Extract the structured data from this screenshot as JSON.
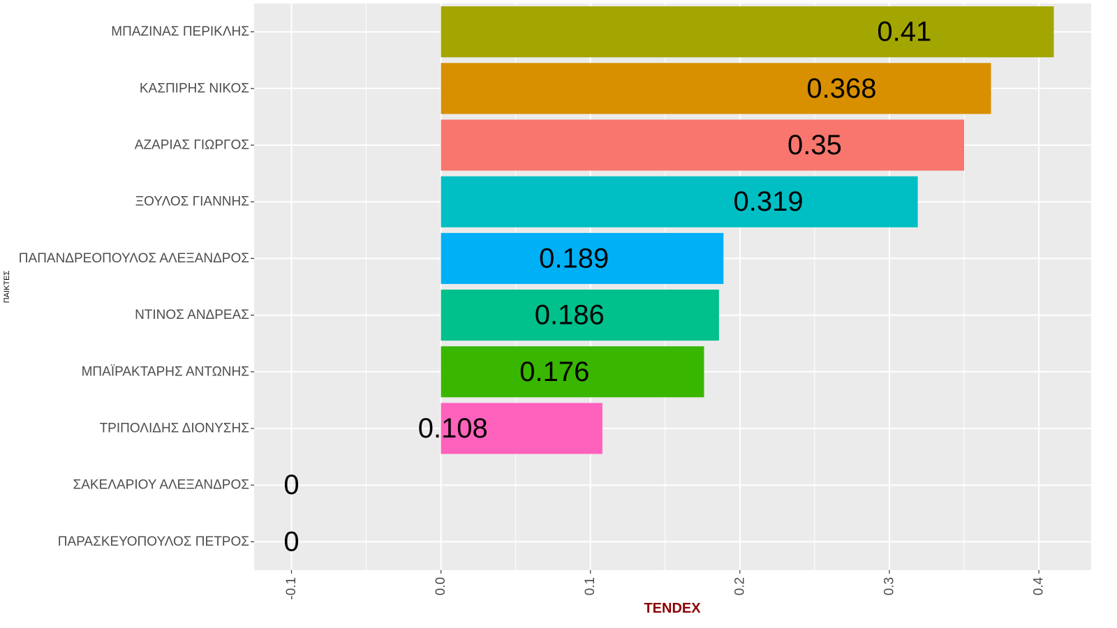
{
  "chart_data": {
    "type": "bar",
    "orientation": "horizontal",
    "xlabel": "TENDEX",
    "ylabel": "ΠΑΙΚΤΕΣ",
    "xlim": [
      -0.125,
      0.435
    ],
    "x_ticks": [
      -0.1,
      0.0,
      0.1,
      0.2,
      0.3,
      0.4
    ],
    "x_tick_labels": [
      "-0.1",
      "0.0",
      "0.1",
      "0.2",
      "0.3",
      "0.4"
    ],
    "grid": true,
    "legend": "none",
    "categories": [
      "ΜΠΑΖΙΝΑΣ ΠΕΡΙΚΛΗΣ",
      "ΚΑΣΠΙΡΗΣ ΝΙΚΟΣ",
      "ΑΖΑΡΙΑΣ ΓΙΩΡΓΟΣ",
      "ΞΟΥΛΟΣ ΓΙΑΝΝΗΣ",
      "ΠΑΠΑΝΔΡΕΟΠΟΥΛΟΣ ΑΛΕΞΑΝΔΡΟΣ",
      "ΝΤΙΝΟΣ ΑΝΔΡΕΑΣ",
      "ΜΠΑΪΡΑΚΤΑΡΗΣ ΑΝΤΩΝΗΣ",
      "ΤΡΙΠΟΛΙΔΗΣ ΔΙΟΝΥΣΗΣ",
      "ΣΑΚΕΛΑΡΙΟΥ ΑΛΕΞΑΝΔΡΟΣ",
      "ΠΑΡΑΣΚΕΥΟΠΟΥΛΟΣ ΠΕΤΡΟΣ"
    ],
    "values": [
      0.41,
      0.368,
      0.35,
      0.319,
      0.189,
      0.186,
      0.176,
      0.108,
      0,
      0
    ],
    "value_labels": [
      "0.41",
      "0.368",
      "0.35",
      "0.319",
      "0.189",
      "0.186",
      "0.176",
      "0.108",
      "0",
      "0"
    ],
    "colors": [
      "#A3A500",
      "#D89000",
      "#F8766D",
      "#00BFC4",
      "#00B0F6",
      "#00C08B",
      "#39B600",
      "#FF62BC",
      "#E76BF3",
      "#9590FF"
    ],
    "panel_background": "#EBEBEB",
    "grid_color": "#FFFFFF",
    "xlabel_color": "#8B0000"
  }
}
